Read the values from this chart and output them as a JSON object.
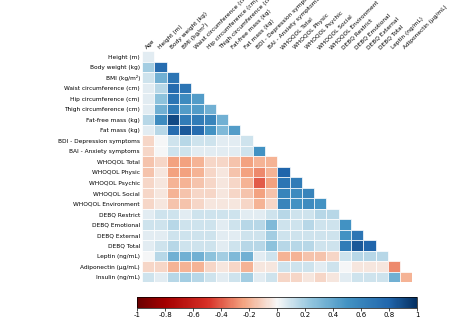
{
  "variables": [
    "Height (m)",
    "Body weight (kg)",
    "BMI (kg/m²)",
    "Waist circumference (cm)",
    "Hip circumference (cm)",
    "Thigh circumference (cm)",
    "Fat-free mass (kg)",
    "Fat mass (kg)",
    "BDI - Depression symptoms",
    "BAI - Anxiety symptoms",
    "WHOQOL Total",
    "WHOQOL Physic",
    "WHOQOL Psychic",
    "WHOQOL Social",
    "WHOQOL Environment",
    "DEBQ Restrict",
    "DEBQ Emotional",
    "DEBQ External",
    "DEBQ Total",
    "Leptin (ng/mL)",
    "Adiponectin (µg/mL)",
    "Insulin (ng/mL)"
  ],
  "col_labels": [
    "Age",
    "Height (m)",
    "Body weight (kg)",
    "BMI (kg/m²)",
    "Waist circumference (cm)",
    "Hip circumference (cm)",
    "Thigh circumference (cm)",
    "Fat-free mass (kg)",
    "Fat mass (kg)",
    "BDI - Depression symptoms",
    "BAI - Anxiety symptoms",
    "WHOQOL Total",
    "WHOQOL Physic",
    "WHOQOL Psychic",
    "WHOQOL Social",
    "WHOQOL Environment",
    "DEBQ Restrict",
    "DEBQ Emotional",
    "DEBQ External",
    "DEBQ Total",
    "Leptin (ng/mL)",
    "Adiponectin (µg/mL)"
  ],
  "corr_matrix": [
    [
      0.05,
      null,
      null,
      null,
      null,
      null,
      null,
      null,
      null,
      null,
      null,
      null,
      null,
      null,
      null,
      null,
      null,
      null,
      null,
      null,
      null,
      null
    ],
    [
      0.2,
      0.75,
      null,
      null,
      null,
      null,
      null,
      null,
      null,
      null,
      null,
      null,
      null,
      null,
      null,
      null,
      null,
      null,
      null,
      null,
      null,
      null
    ],
    [
      0.1,
      0.35,
      0.7,
      null,
      null,
      null,
      null,
      null,
      null,
      null,
      null,
      null,
      null,
      null,
      null,
      null,
      null,
      null,
      null,
      null,
      null,
      null
    ],
    [
      0.05,
      0.15,
      0.75,
      0.7,
      null,
      null,
      null,
      null,
      null,
      null,
      null,
      null,
      null,
      null,
      null,
      null,
      null,
      null,
      null,
      null,
      null,
      null
    ],
    [
      0.05,
      0.25,
      0.7,
      0.55,
      0.45,
      null,
      null,
      null,
      null,
      null,
      null,
      null,
      null,
      null,
      null,
      null,
      null,
      null,
      null,
      null,
      null,
      null
    ],
    [
      0.05,
      0.35,
      0.65,
      0.45,
      0.45,
      0.35,
      null,
      null,
      null,
      null,
      null,
      null,
      null,
      null,
      null,
      null,
      null,
      null,
      null,
      null,
      null,
      null
    ],
    [
      0.15,
      0.55,
      0.9,
      0.65,
      0.65,
      0.6,
      0.35,
      null,
      null,
      null,
      null,
      null,
      null,
      null,
      null,
      null,
      null,
      null,
      null,
      null,
      null,
      null
    ],
    [
      0.05,
      0.15,
      0.75,
      0.85,
      0.75,
      0.5,
      0.3,
      0.45,
      null,
      null,
      null,
      null,
      null,
      null,
      null,
      null,
      null,
      null,
      null,
      null,
      null,
      null
    ],
    [
      -0.1,
      0.0,
      0.1,
      0.15,
      0.1,
      0.1,
      0.05,
      0.05,
      0.1,
      null,
      null,
      null,
      null,
      null,
      null,
      null,
      null,
      null,
      null,
      null,
      null,
      null
    ],
    [
      -0.1,
      0.0,
      0.1,
      0.1,
      0.05,
      0.05,
      0.05,
      0.05,
      0.1,
      0.5,
      null,
      null,
      null,
      null,
      null,
      null,
      null,
      null,
      null,
      null,
      null,
      null
    ],
    [
      -0.15,
      -0.1,
      -0.25,
      -0.25,
      -0.2,
      -0.1,
      -0.1,
      -0.15,
      -0.25,
      -0.2,
      -0.2,
      null,
      null,
      null,
      null,
      null,
      null,
      null,
      null,
      null,
      null,
      null
    ],
    [
      -0.15,
      -0.05,
      -0.25,
      -0.25,
      -0.2,
      -0.1,
      -0.05,
      -0.15,
      -0.25,
      -0.3,
      -0.2,
      0.8,
      null,
      null,
      null,
      null,
      null,
      null,
      null,
      null,
      null,
      null
    ],
    [
      -0.1,
      -0.05,
      -0.2,
      -0.2,
      -0.15,
      -0.1,
      -0.05,
      -0.1,
      -0.2,
      -0.4,
      -0.25,
      0.7,
      0.65,
      null,
      null,
      null,
      null,
      null,
      null,
      null,
      null,
      null
    ],
    [
      -0.1,
      -0.05,
      -0.2,
      -0.15,
      -0.1,
      -0.1,
      -0.05,
      -0.1,
      -0.15,
      -0.25,
      -0.15,
      0.6,
      0.55,
      0.6,
      null,
      null,
      null,
      null,
      null,
      null,
      null,
      null
    ],
    [
      -0.1,
      -0.05,
      -0.15,
      -0.15,
      -0.1,
      -0.05,
      -0.05,
      -0.05,
      -0.1,
      -0.2,
      -0.1,
      0.6,
      0.5,
      0.55,
      0.5,
      null,
      null,
      null,
      null,
      null,
      null,
      null
    ],
    [
      0.05,
      0.1,
      0.1,
      0.05,
      0.1,
      0.1,
      0.1,
      0.1,
      0.05,
      0.05,
      0.1,
      0.15,
      0.1,
      0.1,
      0.15,
      0.15,
      null,
      null,
      null,
      null,
      null,
      null
    ],
    [
      0.1,
      0.1,
      0.15,
      0.1,
      0.1,
      0.1,
      0.05,
      0.1,
      0.15,
      0.15,
      0.3,
      0.1,
      0.1,
      0.15,
      0.1,
      0.1,
      0.5,
      null,
      null,
      null,
      null,
      null
    ],
    [
      0.05,
      0.05,
      0.1,
      0.1,
      0.1,
      0.1,
      0.05,
      0.05,
      0.1,
      0.1,
      0.2,
      0.1,
      0.1,
      0.1,
      0.1,
      0.1,
      0.5,
      0.7,
      null,
      null,
      null,
      null
    ],
    [
      0.05,
      0.1,
      0.15,
      0.1,
      0.1,
      0.1,
      0.05,
      0.1,
      0.15,
      0.15,
      0.25,
      0.15,
      0.15,
      0.15,
      0.1,
      0.1,
      0.65,
      0.85,
      0.8,
      null,
      null,
      null
    ],
    [
      0.0,
      0.15,
      0.35,
      0.35,
      0.35,
      0.25,
      0.2,
      0.3,
      0.35,
      0.05,
      0.1,
      -0.2,
      -0.2,
      -0.15,
      -0.15,
      -0.1,
      0.1,
      0.15,
      0.15,
      0.15,
      null,
      null
    ],
    [
      -0.1,
      -0.1,
      -0.2,
      -0.2,
      -0.2,
      -0.1,
      -0.05,
      -0.1,
      -0.2,
      -0.05,
      -0.05,
      0.1,
      0.1,
      0.1,
      0.05,
      0.1,
      0.0,
      -0.05,
      -0.05,
      -0.05,
      -0.3,
      null
    ],
    [
      0.1,
      0.05,
      0.15,
      0.2,
      0.15,
      0.1,
      0.05,
      0.1,
      0.2,
      0.05,
      0.1,
      -0.1,
      -0.1,
      -0.05,
      -0.1,
      -0.05,
      0.05,
      0.1,
      0.1,
      0.1,
      0.35,
      -0.2
    ]
  ],
  "vmin": -1,
  "vmax": 1,
  "colorbar_ticks": [
    -1,
    -0.8,
    -0.6,
    -0.4,
    -0.2,
    0,
    0.2,
    0.4,
    0.6,
    0.8,
    1
  ],
  "fig_bg": "#ffffff",
  "cell_edgecolor": "white",
  "cell_linewidth": 0.5,
  "label_fontsize": 4.2,
  "colorbar_fontsize": 5.0
}
